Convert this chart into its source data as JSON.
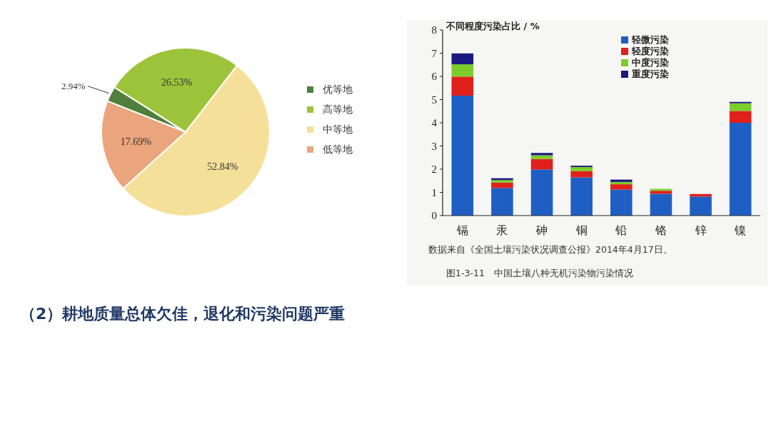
{
  "chart_data": [
    {
      "type": "pie",
      "categories": [
        "优等地",
        "高等地",
        "中等地",
        "低等地"
      ],
      "values": [
        2.94,
        26.53,
        52.84,
        17.69
      ],
      "colors": [
        "#4f7f3a",
        "#9dc33b",
        "#f5e09a",
        "#eba57c"
      ],
      "value_labels": [
        "2.94%",
        "26.53%",
        "52.84%",
        "17.69%"
      ],
      "legend": "right"
    },
    {
      "type": "bar",
      "stacked": true,
      "ylabel": "不同程度污染占比 / %",
      "categories": [
        "镉",
        "汞",
        "砷",
        "铜",
        "铅",
        "铬",
        "锌",
        "镍"
      ],
      "ylim": [
        0,
        8
      ],
      "yticks": [
        0,
        1,
        2,
        3,
        4,
        5,
        6,
        7,
        8
      ],
      "legend": "top right",
      "grid": false,
      "series": [
        {
          "name": "轻微污染",
          "color": "#1f5fc4",
          "values": [
            5.17,
            1.19,
            1.99,
            1.65,
            1.12,
            0.94,
            0.82,
            4.0
          ]
        },
        {
          "name": "轻度污染",
          "color": "#e0201a",
          "values": [
            0.82,
            0.23,
            0.45,
            0.26,
            0.23,
            0.13,
            0.11,
            0.51
          ]
        },
        {
          "name": "中度污染",
          "color": "#7ccc2a",
          "values": [
            0.53,
            0.11,
            0.16,
            0.18,
            0.1,
            0.08,
            0,
            0.33
          ]
        },
        {
          "name": "重度污染",
          "color": "#1a1a80",
          "values": [
            0.47,
            0.08,
            0.1,
            0.06,
            0.1,
            0,
            0,
            0.06
          ]
        }
      ],
      "annotations": [
        "数据来自《全国土壤污染状况调查公报》2014年4月17日。",
        "图1-3-11　中国土壤八种无机污染物污染情况"
      ]
    },
    {
      "type": "other",
      "title": "（2）耕地质量总体欠佳，退化和污染问题严重"
    }
  ]
}
